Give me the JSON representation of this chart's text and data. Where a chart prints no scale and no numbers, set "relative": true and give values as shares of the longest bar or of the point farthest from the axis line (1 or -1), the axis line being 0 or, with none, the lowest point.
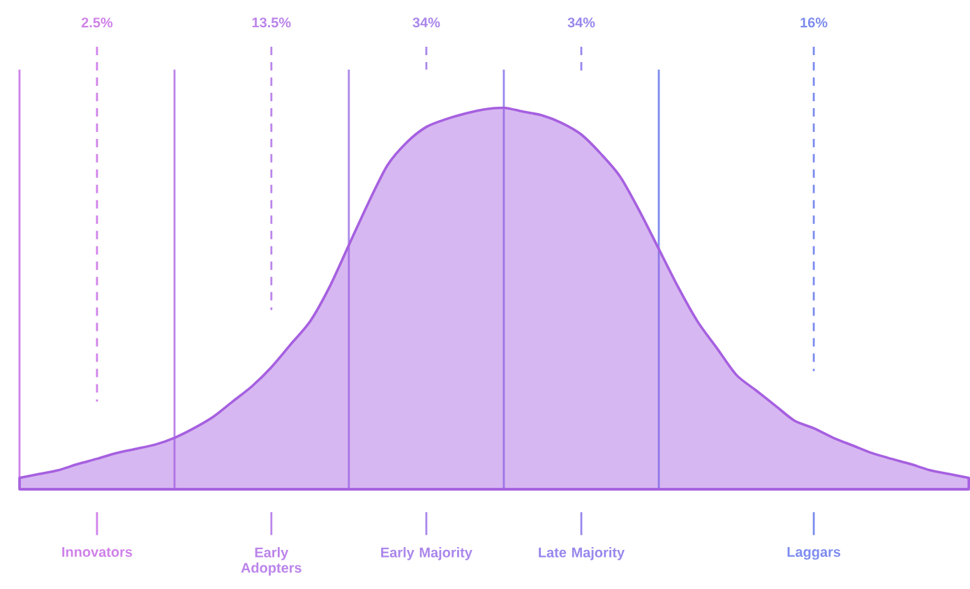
{
  "chart_data": {
    "type": "area",
    "relative": true,
    "categories": [
      null,
      null,
      null,
      null,
      "Innovators",
      null,
      null,
      null,
      null,
      null,
      null,
      null,
      null,
      "Early Adopters",
      null,
      null,
      null,
      null,
      null,
      null,
      null,
      "Early Majority",
      null,
      null,
      null,
      null,
      null,
      null,
      null,
      "Late Majority",
      null,
      null,
      null,
      null,
      null,
      null,
      null,
      null,
      null,
      null,
      null,
      "Laggars",
      null,
      null,
      null,
      null,
      null,
      null,
      null,
      null
    ],
    "series": [
      {
        "color": "#a660e0",
        "values": [
          0.03,
          0.04,
          0.05,
          0.066,
          0.08,
          0.095,
          0.106,
          0.117,
          0.135,
          0.16,
          0.19,
          0.23,
          0.27,
          0.32,
          0.38,
          0.44,
          0.53,
          0.64,
          0.75,
          0.85,
          0.91,
          0.95,
          0.97,
          0.985,
          0.996,
          1,
          0.99,
          0.98,
          0.96,
          0.93,
          0.88,
          0.82,
          0.73,
          0.63,
          0.53,
          0.44,
          0.37,
          0.3,
          0.26,
          0.22,
          0.18,
          0.16,
          0.135,
          0.115,
          0.095,
          0.08,
          0.066,
          0.05,
          0.04,
          0.03
        ]
      }
    ],
    "annotations": [
      "2.5%",
      "13.5%",
      "34%",
      "34%",
      "16%"
    ]
  }
}
